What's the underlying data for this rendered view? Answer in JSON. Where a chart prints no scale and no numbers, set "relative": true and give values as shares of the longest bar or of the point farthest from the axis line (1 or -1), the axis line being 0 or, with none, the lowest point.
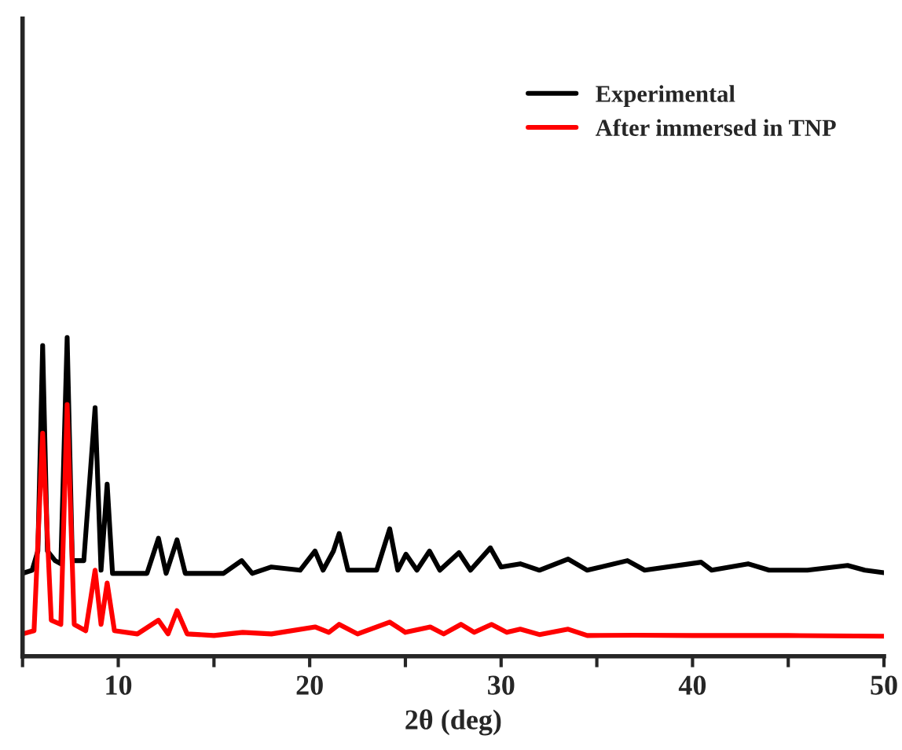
{
  "chart_data": {
    "type": "line",
    "relative": true,
    "xlabel": "2θ (deg)",
    "xlim": [
      5,
      50
    ],
    "xticks": [
      {
        "value": 5,
        "label": null
      },
      10,
      {
        "value": 15,
        "label": null
      },
      20,
      {
        "value": 25,
        "label": null
      },
      30,
      {
        "value": 35,
        "label": null
      },
      40,
      {
        "value": 45,
        "label": null
      },
      50
    ],
    "legend": "top right",
    "grid": false,
    "marker": "none",
    "line_style": "solid",
    "series": [
      {
        "name": "Experimental",
        "color": "#000000",
        "x": [
          5,
          5.5,
          5.8,
          6.05,
          6.3,
          6.7,
          7.0,
          7.33,
          7.6,
          8.2,
          8.79,
          9.1,
          9.42,
          9.7,
          10.5,
          11.5,
          12.1,
          12.5,
          13.07,
          13.5,
          14.5,
          15.5,
          16.45,
          17.0,
          18.0,
          19.5,
          20.28,
          20.7,
          21.24,
          21.54,
          22.0,
          23.5,
          24.18,
          24.6,
          25.03,
          25.6,
          26.26,
          26.8,
          27.8,
          28.4,
          29.44,
          30.0,
          31.0,
          32.0,
          33.5,
          34.5,
          36.6,
          37.5,
          40.45,
          41.0,
          42.9,
          44.0,
          46.0,
          48.1,
          49.0,
          50
        ],
        "values": [
          0.26,
          0.27,
          0.33,
          0.975,
          0.33,
          0.3,
          0.29,
          1.0,
          0.3,
          0.3,
          0.78,
          0.27,
          0.54,
          0.26,
          0.26,
          0.26,
          0.37,
          0.26,
          0.365,
          0.26,
          0.26,
          0.26,
          0.3,
          0.26,
          0.28,
          0.27,
          0.33,
          0.27,
          0.33,
          0.385,
          0.27,
          0.27,
          0.4,
          0.27,
          0.32,
          0.27,
          0.33,
          0.27,
          0.325,
          0.27,
          0.34,
          0.28,
          0.29,
          0.27,
          0.305,
          0.27,
          0.3,
          0.27,
          0.295,
          0.27,
          0.29,
          0.27,
          0.27,
          0.285,
          0.27,
          0.262
        ]
      },
      {
        "name": "After immersed in TNP",
        "color": "#ff0000",
        "x": [
          5,
          5.6,
          6.05,
          6.5,
          7.0,
          7.33,
          7.7,
          8.3,
          8.79,
          9.1,
          9.42,
          9.8,
          11,
          12.1,
          12.6,
          13.07,
          13.6,
          15,
          16.5,
          18,
          20.28,
          21.0,
          21.54,
          22.5,
          24.18,
          25,
          26.3,
          27,
          27.9,
          28.6,
          29.5,
          30.3,
          31.0,
          32,
          33.5,
          34.5,
          37,
          40,
          45,
          50
        ],
        "values": [
          0.07,
          0.08,
          0.7,
          0.113,
          0.1,
          0.79,
          0.1,
          0.08,
          0.27,
          0.1,
          0.23,
          0.08,
          0.07,
          0.113,
          0.07,
          0.143,
          0.07,
          0.065,
          0.075,
          0.07,
          0.092,
          0.075,
          0.1,
          0.07,
          0.107,
          0.075,
          0.092,
          0.07,
          0.1,
          0.075,
          0.1,
          0.075,
          0.085,
          0.068,
          0.085,
          0.065,
          0.066,
          0.065,
          0.065,
          0.063
        ]
      }
    ]
  }
}
